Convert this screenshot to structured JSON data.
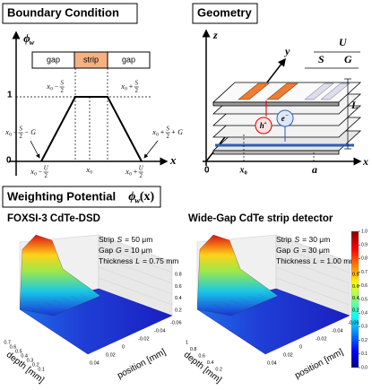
{
  "boundary_condition": {
    "title": "Boundary Condition",
    "y_axis": {
      "main": "ϕ",
      "sub": "w"
    },
    "x_axis": "x",
    "bar": [
      "gap",
      "strip",
      "gap"
    ],
    "level_one": "1",
    "origin": "0",
    "labels": [
      {
        "main": "x",
        "sub": "0",
        "op": "−",
        "num": "S",
        "den": "2"
      },
      {
        "main": "x",
        "sub": "0",
        "op": "+",
        "num": "S",
        "den": "2"
      },
      {
        "main": "x",
        "sub": "0",
        "op": "−",
        "num": "S",
        "den": "2",
        "extra": "− G"
      },
      {
        "main": "x",
        "sub": "0",
        "op": "+",
        "num": "S",
        "den": "2",
        "extra": "+ G"
      },
      {
        "main": "x",
        "sub": "0",
        "op": "−",
        "num": "U",
        "den": "2"
      },
      {
        "main": "x",
        "sub": "0"
      },
      {
        "main": "x",
        "sub": "0",
        "op": "+",
        "num": "U",
        "den": "2"
      }
    ]
  },
  "geometry": {
    "title": "Geometry",
    "axis_z": "z",
    "axis_y": "y",
    "axis_x": "x",
    "origin": "0",
    "x0": {
      "main": "x",
      "sub": "0"
    },
    "a": "a",
    "U": "U",
    "S": "S",
    "G": "G",
    "L": "L",
    "hole": {
      "main": "h",
      "sup": "+"
    },
    "electron": {
      "main": "e",
      "sup": "−"
    }
  },
  "weighting_potential": {
    "title": "Weighting Potential",
    "symbol": {
      "main": "ϕ",
      "sub": "w",
      "tail": "(x)"
    },
    "plots": [
      {
        "title": "FOXSI-3 CdTe-DSD",
        "params": [
          {
            "name": "Strip",
            "sym": "S",
            "value": "= 50 μm"
          },
          {
            "name": "Gap",
            "sym": "G",
            "value": "= 10 μm"
          },
          {
            "name": "Thickness",
            "sym": "L",
            "value": "= 0.75 mm"
          }
        ],
        "depth_label": "depth [mm]",
        "position_label": "position [mm]",
        "depth_ticks": [
          "0.7",
          "0.6",
          "0.5",
          "0.4",
          "0.3",
          "0.2",
          "0.1"
        ],
        "position_ticks": [
          "0.04",
          "0.02",
          "0",
          "-0.02",
          "-0.04",
          "-0.06"
        ],
        "z_ticks": [
          "0.8",
          "0.6",
          "0.4",
          "0.2"
        ]
      },
      {
        "title": "Wide-Gap CdTe strip detector",
        "params": [
          {
            "name": "Strip",
            "sym": "S",
            "value": "= 30 μm"
          },
          {
            "name": "Gap",
            "sym": "G",
            "value": "= 30 μm"
          },
          {
            "name": "Thickness",
            "sym": "L",
            "value": "= 1.00 mm"
          }
        ],
        "depth_label": "depth [mm]",
        "position_label": "position [mm]",
        "depth_ticks": [
          "1",
          "0.8",
          "0.6",
          "0.4",
          "0.2"
        ],
        "position_ticks": [
          "0.04",
          "0.02",
          "0",
          "-0.02",
          "-0.04",
          "-0.06"
        ],
        "z_ticks": [
          "0.8",
          "0.6",
          "0.4",
          "0.2"
        ]
      }
    ],
    "colorbar_ticks": [
      "1.0",
      "0.9",
      "0.8",
      "0.7",
      "0.6",
      "0.5",
      "0.4",
      "0.3",
      "0.2",
      "0.1",
      "0.0"
    ]
  }
}
